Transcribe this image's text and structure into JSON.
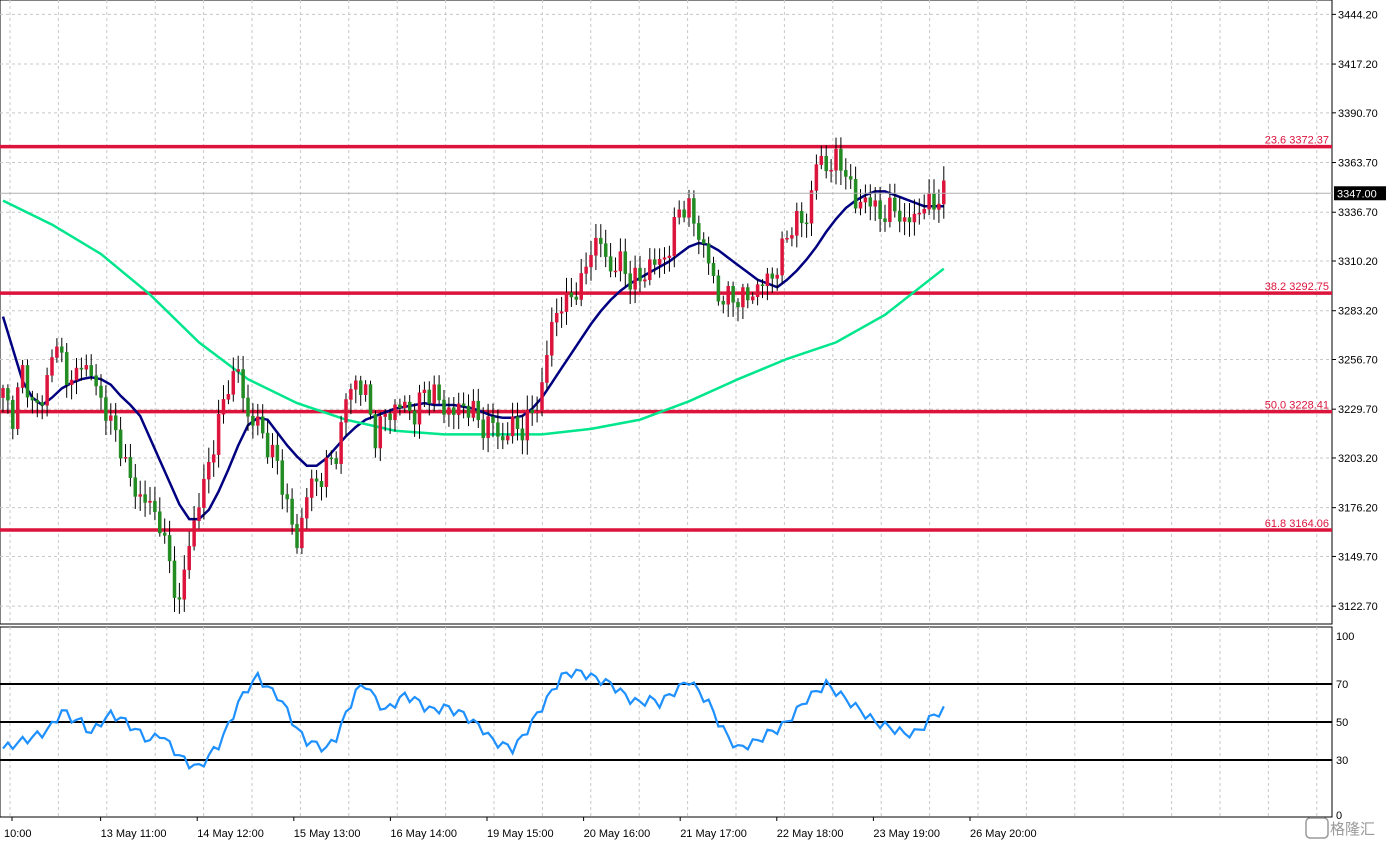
{
  "chart_data": {
    "type": "candlestick",
    "symbol_timeframe": "",
    "price_axis": {
      "ticks": [
        "3444.20",
        "3417.20",
        "3390.70",
        "3363.70",
        "3336.70",
        "3310.20",
        "3283.20",
        "3256.70",
        "3229.70",
        "3203.20",
        "3176.20",
        "3149.70",
        "3122.70"
      ],
      "ylim": [
        3113,
        3452
      ]
    },
    "time_axis": {
      "ticks": [
        "10:00",
        "13 May 11:00",
        "14 May 12:00",
        "15 May 13:00",
        "16 May 14:00",
        "19 May 15:00",
        "20 May 16:00",
        "21 May 17:00",
        "22 May 18:00",
        "23 May 19:00",
        "26 May 20:00"
      ]
    },
    "current_price": "3347.00",
    "fibonacci_levels": [
      {
        "label": "23.6 3372.37",
        "value": 3372.37
      },
      {
        "label": "38.2 3292.75",
        "value": 3292.75
      },
      {
        "label": "50.0 3228.41",
        "value": 3228.41
      },
      {
        "label": "61.8 3164.06",
        "value": 3164.06
      }
    ],
    "close_path": [
      [
        0,
        3238
      ],
      [
        2,
        3226
      ],
      [
        4,
        3250
      ],
      [
        6,
        3233
      ],
      [
        8,
        3232
      ],
      [
        10,
        3262
      ],
      [
        12,
        3258
      ],
      [
        14,
        3242
      ],
      [
        16,
        3256
      ],
      [
        18,
        3248
      ],
      [
        20,
        3235
      ],
      [
        22,
        3222
      ],
      [
        24,
        3210
      ],
      [
        26,
        3190
      ],
      [
        28,
        3182
      ],
      [
        30,
        3178
      ],
      [
        32,
        3168
      ],
      [
        34,
        3145
      ],
      [
        36,
        3123
      ],
      [
        38,
        3158
      ],
      [
        40,
        3178
      ],
      [
        42,
        3200
      ],
      [
        44,
        3222
      ],
      [
        46,
        3244
      ],
      [
        48,
        3250
      ],
      [
        50,
        3225
      ],
      [
        52,
        3222
      ],
      [
        54,
        3210
      ],
      [
        56,
        3200
      ],
      [
        58,
        3178
      ],
      [
        60,
        3155
      ],
      [
        62,
        3185
      ],
      [
        64,
        3190
      ],
      [
        66,
        3198
      ],
      [
        68,
        3205
      ],
      [
        70,
        3235
      ],
      [
        72,
        3245
      ],
      [
        74,
        3238
      ],
      [
        76,
        3215
      ],
      [
        78,
        3226
      ],
      [
        80,
        3230
      ],
      [
        82,
        3232
      ],
      [
        84,
        3226
      ],
      [
        86,
        3240
      ],
      [
        88,
        3238
      ],
      [
        90,
        3230
      ],
      [
        92,
        3228
      ],
      [
        94,
        3232
      ],
      [
        96,
        3228
      ],
      [
        98,
        3220
      ],
      [
        100,
        3222
      ],
      [
        102,
        3212
      ],
      [
        104,
        3222
      ],
      [
        106,
        3218
      ],
      [
        108,
        3228
      ],
      [
        110,
        3240
      ],
      [
        112,
        3278
      ],
      [
        114,
        3285
      ],
      [
        116,
        3292
      ],
      [
        118,
        3297
      ],
      [
        120,
        3318
      ],
      [
        122,
        3320
      ],
      [
        124,
        3305
      ],
      [
        126,
        3310
      ],
      [
        128,
        3300
      ],
      [
        130,
        3300
      ],
      [
        132,
        3308
      ],
      [
        134,
        3310
      ],
      [
        136,
        3316
      ],
      [
        138,
        3340
      ],
      [
        140,
        3338
      ],
      [
        142,
        3325
      ],
      [
        144,
        3310
      ],
      [
        146,
        3290
      ],
      [
        148,
        3290
      ],
      [
        150,
        3290
      ],
      [
        152,
        3290
      ],
      [
        154,
        3296
      ],
      [
        156,
        3300
      ],
      [
        158,
        3306
      ],
      [
        160,
        3325
      ],
      [
        162,
        3332
      ],
      [
        164,
        3332
      ],
      [
        166,
        3364
      ],
      [
        168,
        3362
      ],
      [
        170,
        3364
      ],
      [
        172,
        3360
      ],
      [
        174,
        3340
      ],
      [
        176,
        3345
      ],
      [
        178,
        3338
      ],
      [
        180,
        3335
      ],
      [
        182,
        3340
      ],
      [
        184,
        3330
      ],
      [
        186,
        3335
      ],
      [
        188,
        3340
      ],
      [
        190,
        3342
      ],
      [
        192,
        3347
      ]
    ],
    "moving_averages": [
      {
        "color": "#000080",
        "values": [
          [
            0,
            3280
          ],
          [
            4,
            3245
          ],
          [
            6,
            3236
          ],
          [
            8,
            3232
          ],
          [
            10,
            3236
          ],
          [
            12,
            3241
          ],
          [
            14,
            3244
          ],
          [
            16,
            3246
          ],
          [
            18,
            3247
          ],
          [
            20,
            3246
          ],
          [
            22,
            3243
          ],
          [
            24,
            3237
          ],
          [
            26,
            3232
          ],
          [
            28,
            3226
          ],
          [
            30,
            3214
          ],
          [
            32,
            3202
          ],
          [
            34,
            3190
          ],
          [
            36,
            3178
          ],
          [
            38,
            3170
          ],
          [
            40,
            3170
          ],
          [
            42,
            3175
          ],
          [
            44,
            3185
          ],
          [
            46,
            3197
          ],
          [
            48,
            3210
          ],
          [
            50,
            3221
          ],
          [
            52,
            3225
          ],
          [
            54,
            3224
          ],
          [
            56,
            3217
          ],
          [
            58,
            3210
          ],
          [
            60,
            3204
          ],
          [
            62,
            3199
          ],
          [
            64,
            3199
          ],
          [
            66,
            3203
          ],
          [
            68,
            3209
          ],
          [
            70,
            3215
          ],
          [
            72,
            3220
          ],
          [
            74,
            3224
          ],
          [
            76,
            3226
          ],
          [
            78,
            3228
          ],
          [
            80,
            3230
          ],
          [
            82,
            3231
          ],
          [
            84,
            3232
          ],
          [
            86,
            3233
          ],
          [
            88,
            3232
          ],
          [
            90,
            3232
          ],
          [
            92,
            3232
          ],
          [
            94,
            3231
          ],
          [
            96,
            3230
          ],
          [
            98,
            3228
          ],
          [
            100,
            3226
          ],
          [
            102,
            3225
          ],
          [
            104,
            3225
          ],
          [
            106,
            3226
          ],
          [
            108,
            3230
          ],
          [
            110,
            3236
          ],
          [
            112,
            3244
          ],
          [
            114,
            3252
          ],
          [
            116,
            3260
          ],
          [
            118,
            3268
          ],
          [
            120,
            3276
          ],
          [
            122,
            3283
          ],
          [
            124,
            3289
          ],
          [
            126,
            3294
          ],
          [
            128,
            3298
          ],
          [
            130,
            3301
          ],
          [
            132,
            3304
          ],
          [
            134,
            3307
          ],
          [
            136,
            3310
          ],
          [
            138,
            3314
          ],
          [
            140,
            3318
          ],
          [
            142,
            3320
          ],
          [
            144,
            3319
          ],
          [
            146,
            3316
          ],
          [
            148,
            3312
          ],
          [
            150,
            3308
          ],
          [
            152,
            3304
          ],
          [
            154,
            3300
          ],
          [
            156,
            3298
          ],
          [
            158,
            3296
          ],
          [
            160,
            3300
          ],
          [
            162,
            3305
          ],
          [
            164,
            3311
          ],
          [
            166,
            3318
          ],
          [
            168,
            3326
          ],
          [
            170,
            3333
          ],
          [
            172,
            3339
          ],
          [
            174,
            3343
          ],
          [
            176,
            3346
          ],
          [
            178,
            3348
          ],
          [
            180,
            3348
          ],
          [
            182,
            3346
          ],
          [
            184,
            3344
          ],
          [
            186,
            3342
          ],
          [
            188,
            3340
          ],
          [
            190,
            3340
          ],
          [
            192,
            3340
          ]
        ]
      },
      {
        "color": "#00e68c",
        "values": [
          [
            0,
            3343
          ],
          [
            10,
            3330
          ],
          [
            20,
            3314
          ],
          [
            30,
            3292
          ],
          [
            40,
            3266
          ],
          [
            50,
            3246
          ],
          [
            60,
            3233
          ],
          [
            70,
            3224
          ],
          [
            80,
            3218
          ],
          [
            90,
            3216
          ],
          [
            100,
            3216
          ],
          [
            110,
            3216
          ],
          [
            120,
            3219
          ],
          [
            130,
            3224
          ],
          [
            140,
            3234
          ],
          [
            150,
            3246
          ],
          [
            160,
            3257
          ],
          [
            170,
            3266
          ],
          [
            180,
            3281
          ],
          [
            192,
            3306
          ]
        ]
      }
    ],
    "rsi": {
      "ticks": [
        "100",
        "70",
        "50",
        "30",
        "0"
      ],
      "levels": [
        70,
        50,
        30
      ],
      "color": "#1e90ff",
      "values": [
        [
          0,
          36
        ],
        [
          4,
          40
        ],
        [
          8,
          44
        ],
        [
          10,
          48
        ],
        [
          12,
          56
        ],
        [
          14,
          52
        ],
        [
          16,
          50
        ],
        [
          18,
          44
        ],
        [
          20,
          50
        ],
        [
          22,
          54
        ],
        [
          24,
          52
        ],
        [
          26,
          48
        ],
        [
          28,
          44
        ],
        [
          30,
          40
        ],
        [
          32,
          44
        ],
        [
          34,
          38
        ],
        [
          36,
          32
        ],
        [
          38,
          28
        ],
        [
          40,
          26
        ],
        [
          42,
          32
        ],
        [
          44,
          38
        ],
        [
          46,
          48
        ],
        [
          48,
          60
        ],
        [
          50,
          68
        ],
        [
          52,
          74
        ],
        [
          54,
          68
        ],
        [
          56,
          64
        ],
        [
          58,
          56
        ],
        [
          60,
          46
        ],
        [
          62,
          40
        ],
        [
          64,
          38
        ],
        [
          66,
          36
        ],
        [
          68,
          42
        ],
        [
          70,
          54
        ],
        [
          72,
          66
        ],
        [
          74,
          70
        ],
        [
          76,
          62
        ],
        [
          78,
          56
        ],
        [
          80,
          60
        ],
        [
          82,
          64
        ],
        [
          84,
          62
        ],
        [
          86,
          58
        ],
        [
          88,
          56
        ],
        [
          90,
          58
        ],
        [
          92,
          56
        ],
        [
          94,
          54
        ],
        [
          96,
          50
        ],
        [
          98,
          46
        ],
        [
          100,
          40
        ],
        [
          102,
          38
        ],
        [
          104,
          36
        ],
        [
          106,
          42
        ],
        [
          108,
          50
        ],
        [
          110,
          58
        ],
        [
          112,
          66
        ],
        [
          114,
          74
        ],
        [
          116,
          76
        ],
        [
          118,
          76
        ],
        [
          120,
          74
        ],
        [
          122,
          72
        ],
        [
          124,
          70
        ],
        [
          126,
          66
        ],
        [
          128,
          62
        ],
        [
          130,
          60
        ],
        [
          132,
          62
        ],
        [
          134,
          60
        ],
        [
          136,
          64
        ],
        [
          138,
          68
        ],
        [
          140,
          72
        ],
        [
          142,
          66
        ],
        [
          144,
          60
        ],
        [
          146,
          50
        ],
        [
          148,
          42
        ],
        [
          150,
          36
        ],
        [
          152,
          38
        ],
        [
          154,
          40
        ],
        [
          156,
          44
        ],
        [
          158,
          46
        ],
        [
          160,
          50
        ],
        [
          162,
          56
        ],
        [
          164,
          62
        ],
        [
          166,
          66
        ],
        [
          168,
          70
        ],
        [
          170,
          66
        ],
        [
          172,
          62
        ],
        [
          174,
          58
        ],
        [
          176,
          54
        ],
        [
          178,
          50
        ],
        [
          180,
          48
        ],
        [
          182,
          46
        ],
        [
          184,
          44
        ],
        [
          186,
          44
        ],
        [
          188,
          48
        ],
        [
          190,
          54
        ],
        [
          192,
          56
        ]
      ]
    }
  },
  "watermark": {
    "text": "格隆汇"
  }
}
